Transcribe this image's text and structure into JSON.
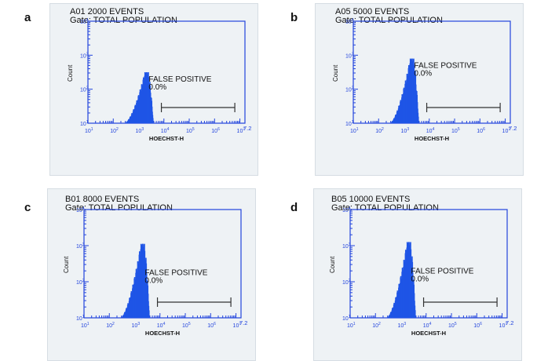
{
  "colors": {
    "histogram": "#1f55e6",
    "axis": "#2244dd",
    "text": "#111111",
    "panel_bg": "#eef2f5",
    "marker": "#333333"
  },
  "panel_letters": [
    "a",
    "b",
    "c",
    "d"
  ],
  "axis_tick_labels": {
    "x_last": "7.2"
  },
  "chart_data": [
    {
      "panel": "a",
      "type": "histogram",
      "title_line1": "A01 2000 EVENTS",
      "title_line2": "Gate: TOTAL POPULATION",
      "xlabel": "HOECHST-H",
      "ylabel": "Count",
      "x_scale": "log",
      "xlim_log10": [
        1,
        7.2
      ],
      "ylim_log10": [
        1,
        4
      ],
      "peak_log10_x": 3.3,
      "peak_log10_count": 2.5,
      "annotation": {
        "label": "FALSE POSITIVE",
        "value": "0.0%",
        "gate_log10_range": [
          3.9,
          6.8
        ]
      }
    },
    {
      "panel": "b",
      "type": "histogram",
      "title_line1": "A05 5000 EVENTS",
      "title_line2": "Gate: TOTAL POPULATION",
      "xlabel": "HOECHST-H",
      "ylabel": "Count",
      "x_scale": "log",
      "xlim_log10": [
        1,
        7.2
      ],
      "ylim_log10": [
        1,
        4
      ],
      "peak_log10_x": 3.3,
      "peak_log10_count": 2.9,
      "annotation": {
        "label": "FALSE POSITIVE",
        "value": "0.0%",
        "gate_log10_range": [
          3.9,
          6.8
        ]
      }
    },
    {
      "panel": "c",
      "type": "histogram",
      "title_line1": "B01 8000 EVENTS",
      "title_line2": "Gate: TOTAL POPULATION",
      "xlabel": "HOECHST-H",
      "ylabel": "Count",
      "x_scale": "log",
      "xlim_log10": [
        1,
        7.2
      ],
      "ylim_log10": [
        1,
        4
      ],
      "peak_log10_x": 3.3,
      "peak_log10_count": 3.05,
      "annotation": {
        "label": "FALSE POSITIVE",
        "value": "0.0%",
        "gate_log10_range": [
          3.9,
          6.8
        ]
      }
    },
    {
      "panel": "d",
      "type": "histogram",
      "title_line1": "B05 10000 EVENTS",
      "title_line2": "Gate: TOTAL POPULATION",
      "xlabel": "HOECHST-H",
      "ylabel": "Count",
      "x_scale": "log",
      "xlim_log10": [
        1,
        7.2
      ],
      "ylim_log10": [
        1,
        4
      ],
      "peak_log10_x": 3.3,
      "peak_log10_count": 3.1,
      "annotation": {
        "label": "FALSE POSITIVE",
        "value": "0.0%",
        "gate_log10_range": [
          3.9,
          6.8
        ]
      }
    }
  ]
}
